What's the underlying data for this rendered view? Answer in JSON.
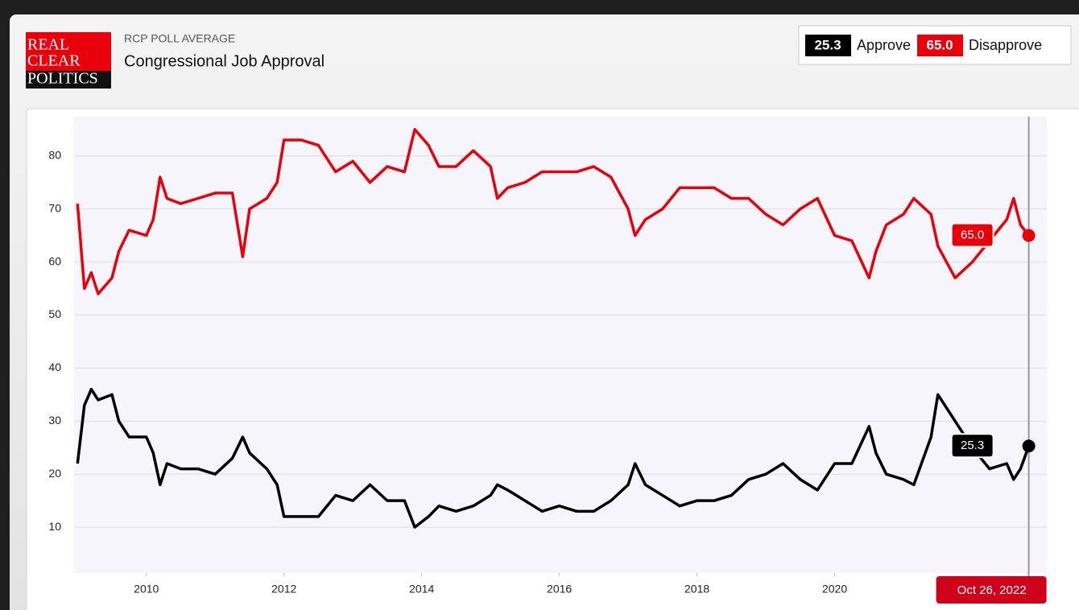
{
  "chart_data": {
    "type": "line",
    "logo": [
      "REAL",
      "CLEAR",
      "POLITICS"
    ],
    "subtitle": "RCP POLL AVERAGE",
    "title": "Congressional Job Approval",
    "date": "Oct 26, 2022",
    "x": [
      2009.0,
      2009.1,
      2009.2,
      2009.3,
      2009.5,
      2009.6,
      2009.75,
      2010.0,
      2010.1,
      2010.2,
      2010.3,
      2010.5,
      2010.75,
      2011.0,
      2011.25,
      2011.4,
      2011.5,
      2011.75,
      2011.9,
      2012.0,
      2012.25,
      2012.5,
      2012.75,
      2013.0,
      2013.25,
      2013.5,
      2013.75,
      2013.9,
      2014.1,
      2014.25,
      2014.5,
      2014.75,
      2015.0,
      2015.1,
      2015.25,
      2015.5,
      2015.75,
      2016.0,
      2016.25,
      2016.5,
      2016.75,
      2017.0,
      2017.1,
      2017.25,
      2017.5,
      2017.75,
      2018.0,
      2018.25,
      2018.5,
      2018.75,
      2019.0,
      2019.25,
      2019.5,
      2019.75,
      2020.0,
      2020.25,
      2020.5,
      2020.6,
      2020.75,
      2021.0,
      2021.15,
      2021.4,
      2021.5,
      2021.75,
      2022.0,
      2022.25,
      2022.5,
      2022.6,
      2022.7,
      2022.82
    ],
    "series": [
      {
        "name": "Approve",
        "color": "#000000",
        "values": [
          22,
          33,
          36,
          34,
          35,
          30,
          27,
          27,
          24,
          18,
          22,
          21,
          21,
          20,
          23,
          27,
          24,
          21,
          18,
          12,
          12,
          12,
          16,
          15,
          18,
          15,
          15,
          10,
          12,
          14,
          13,
          14,
          16,
          18,
          17,
          15,
          13,
          14,
          13,
          13,
          15,
          18,
          22,
          18,
          16,
          14,
          15,
          15,
          16,
          19,
          20,
          22,
          19,
          17,
          22,
          22,
          29,
          24,
          20,
          19,
          18,
          27,
          35,
          30,
          25,
          21,
          22,
          19,
          21,
          25.3
        ],
        "value_labels": [
          null,
          null,
          null,
          null,
          null,
          null,
          null,
          null,
          null,
          null,
          null,
          null,
          null,
          null,
          null,
          null,
          null,
          null,
          null,
          null,
          null,
          null,
          null,
          null,
          null,
          null,
          null,
          null,
          null,
          null,
          null,
          null,
          null,
          null,
          null,
          null,
          null,
          null,
          null,
          null,
          null,
          null,
          null,
          null,
          null,
          null,
          null,
          null,
          null,
          null,
          null,
          null,
          null,
          null,
          null,
          null,
          null,
          null,
          null,
          null,
          null,
          null,
          null,
          null,
          null,
          null,
          null,
          null,
          null,
          "25.3"
        ]
      },
      {
        "name": "Disapprove",
        "color": "#e8000b",
        "values": [
          71,
          55,
          58,
          54,
          57,
          62,
          66,
          65,
          68,
          76,
          72,
          71,
          72,
          73,
          73,
          61,
          70,
          72,
          75,
          83,
          83,
          82,
          77,
          79,
          75,
          78,
          77,
          85,
          82,
          78,
          78,
          81,
          78,
          72,
          74,
          75,
          77,
          77,
          77,
          78,
          76,
          70,
          65,
          68,
          70,
          74,
          74,
          74,
          72,
          72,
          69,
          67,
          70,
          72,
          65,
          64,
          57,
          62,
          67,
          69,
          72,
          69,
          63,
          57,
          60,
          64,
          68,
          72,
          67,
          65
        ],
        "value_labels": [
          null,
          null,
          null,
          null,
          null,
          null,
          null,
          null,
          null,
          null,
          null,
          null,
          null,
          null,
          null,
          null,
          null,
          null,
          null,
          null,
          null,
          null,
          null,
          null,
          null,
          null,
          null,
          null,
          null,
          null,
          null,
          null,
          null,
          null,
          null,
          null,
          null,
          null,
          null,
          null,
          null,
          null,
          null,
          null,
          null,
          null,
          null,
          null,
          null,
          null,
          null,
          null,
          null,
          null,
          null,
          null,
          null,
          null,
          null,
          null,
          null,
          null,
          null,
          null,
          null,
          null,
          null,
          null,
          null,
          "65.0"
        ]
      }
    ],
    "xlim": [
      2008.95,
      2023
    ],
    "xticks": [
      2010,
      2012,
      2014,
      2016,
      2018,
      2020
    ],
    "ylim": [
      0,
      87.4
    ],
    "yticks": [
      10,
      20,
      30,
      40,
      50,
      60,
      70,
      80
    ],
    "grid": true
  }
}
